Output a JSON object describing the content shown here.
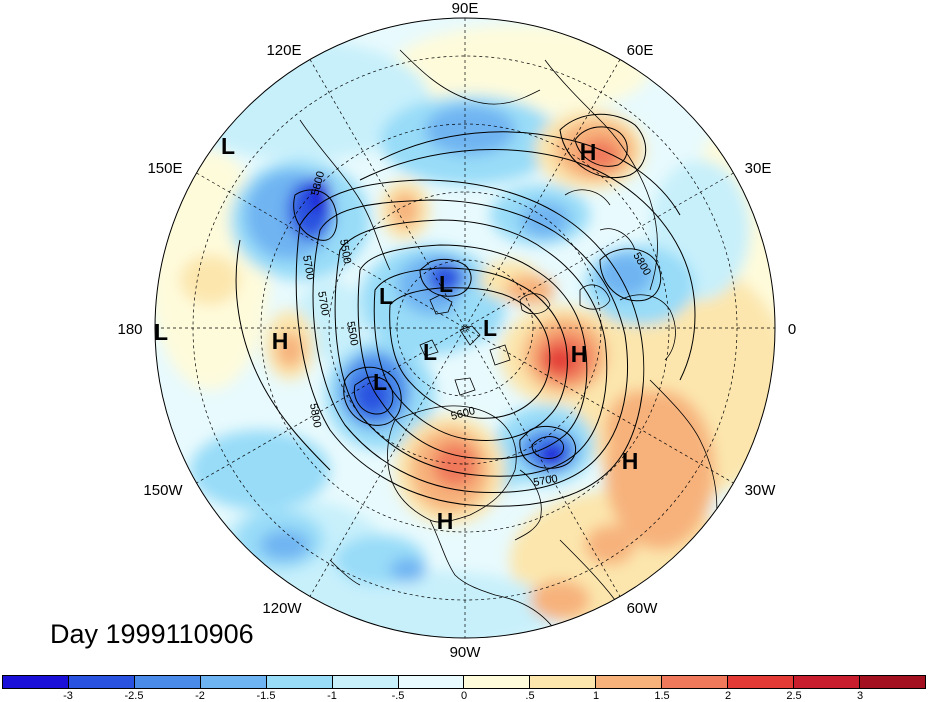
{
  "longitude_labels": {
    "top": "90E",
    "top_left": "120E",
    "top_right": "60E",
    "upper_left": "150E",
    "upper_right": "30E",
    "left": "180",
    "right": "0",
    "lower_left": "150W",
    "lower_right": "30W",
    "bottom_left": "120W",
    "bottom_right": "60W",
    "bottom": "90W"
  },
  "pressure_centers": [
    {
      "type": "L",
      "label": "L"
    },
    {
      "type": "H",
      "label": "H"
    },
    {
      "type": "L",
      "label": "L"
    },
    {
      "type": "L",
      "label": "L"
    },
    {
      "type": "L",
      "label": "L"
    },
    {
      "type": "L",
      "label": "L"
    },
    {
      "type": "L",
      "label": "L"
    },
    {
      "type": "H",
      "label": "H"
    },
    {
      "type": "H",
      "label": "H"
    },
    {
      "type": "L",
      "label": "L"
    },
    {
      "type": "H",
      "label": "H"
    },
    {
      "type": "H",
      "label": "H"
    }
  ],
  "contour_labels": [
    "5800",
    "5700",
    "5700",
    "5500",
    "5500",
    "5800",
    "5800",
    "5600",
    "5700"
  ],
  "day_label": "Day 1999110906",
  "colorbar": {
    "ticks": [
      "-3",
      "-2.5",
      "-2",
      "-1.5",
      "-1",
      "-.5",
      "0",
      ".5",
      "1",
      "1.5",
      "2",
      "2.5",
      "3"
    ],
    "colors": [
      "#1a10d8",
      "#2a52e0",
      "#4a8bea",
      "#6fb4f2",
      "#98dcf8",
      "#c8f0fb",
      "#e8fafd",
      "#fefbdb",
      "#fce6ad",
      "#f7b27b",
      "#f0795b",
      "#e33a36",
      "#c81d2d",
      "#a3101f"
    ]
  }
}
